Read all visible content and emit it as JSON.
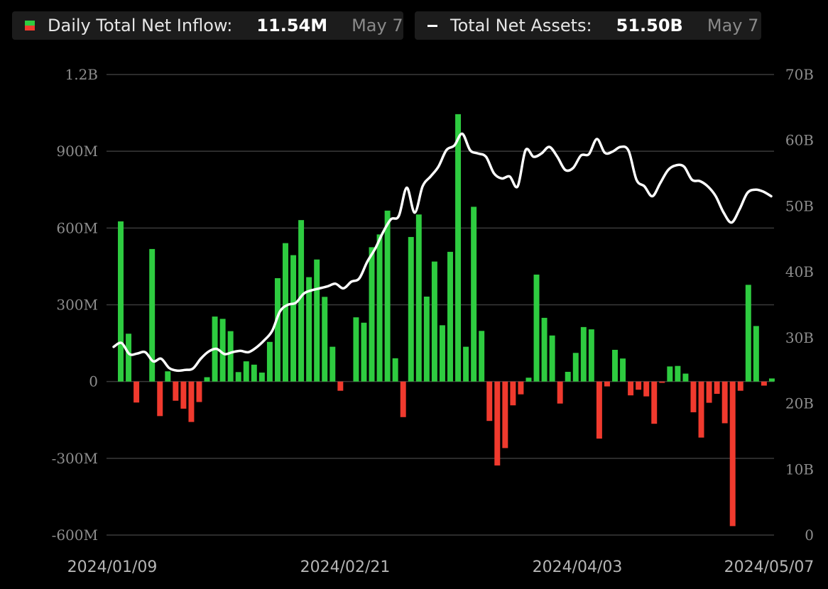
{
  "legend": {
    "inflow": {
      "label": "Daily Total Net Inflow:",
      "value": "11.54M",
      "date": "May 7"
    },
    "assets": {
      "label": "Total Net Assets:",
      "value": "51.50B",
      "date": "May 7"
    }
  },
  "colors": {
    "positive": "#2ecc40",
    "negative": "#f03a2e",
    "line": "#ffffff",
    "grid": "#3a3a3a",
    "background": "#000000"
  },
  "chart_data": {
    "type": "bar",
    "title": "",
    "x_tick_labels": [
      "2024/01/09",
      "2024/02/21",
      "2024/04/03",
      "2024/05/07"
    ],
    "y_left_ticks": [
      "1.2B",
      "900M",
      "600M",
      "300M",
      "0",
      "-300M",
      "-600M"
    ],
    "y_right_ticks": [
      "70B",
      "60B",
      "50B",
      "40B",
      "30B",
      "20B",
      "10B",
      "0"
    ],
    "y_left_range": [
      -600,
      1200
    ],
    "y_right_range": [
      0,
      70
    ],
    "grid": true,
    "series": [
      {
        "name": "Daily Total Net Inflow",
        "type": "bar",
        "unit": "M",
        "values": [
          626,
          187,
          -82,
          0,
          518,
          -135,
          40,
          -75,
          -106,
          -158,
          -80,
          17,
          254,
          245,
          197,
          37,
          79,
          66,
          35,
          155,
          404,
          541,
          494,
          631,
          408,
          477,
          331,
          136,
          -36,
          0,
          251,
          230,
          525,
          575,
          668,
          91,
          -139,
          565,
          653,
          332,
          469,
          220,
          507,
          1045,
          136,
          683,
          198,
          -154,
          -328,
          -260,
          -93,
          -50,
          15,
          418,
          249,
          180,
          -86,
          38,
          112,
          213,
          204,
          -223,
          -19,
          124,
          90,
          -54,
          -32,
          -58,
          -165,
          -5,
          59,
          61,
          31,
          -120,
          -219,
          -83,
          -48,
          -163,
          -565,
          -36,
          378,
          217,
          -16,
          12
        ]
      },
      {
        "name": "Total Net Assets",
        "type": "line",
        "unit": "B",
        "values": [
          28.6,
          29.2,
          27.5,
          27.6,
          27.8,
          26.4,
          26.8,
          25.4,
          25.0,
          25.1,
          25.3,
          26.8,
          27.9,
          28.3,
          27.5,
          27.8,
          28.0,
          27.8,
          28.5,
          29.6,
          31.0,
          34.0,
          35.0,
          35.3,
          36.7,
          37.2,
          37.5,
          37.8,
          38.2,
          37.5,
          38.5,
          39.0,
          41.5,
          43.5,
          46.0,
          48.0,
          48.5,
          52.8,
          49.0,
          53.0,
          54.5,
          56.0,
          58.5,
          59.2,
          61.0,
          58.5,
          58.0,
          57.5,
          55.0,
          54.2,
          54.5,
          53.0,
          58.5,
          57.5,
          58.0,
          59.0,
          57.5,
          55.5,
          55.8,
          57.7,
          57.9,
          60.2,
          58.1,
          58.3,
          59.0,
          58.4,
          54.0,
          53.0,
          51.5,
          53.5,
          55.5,
          56.2,
          56.0,
          54.0,
          53.8,
          53.0,
          51.5,
          49.0,
          47.5,
          49.5,
          52.0,
          52.5,
          52.2,
          51.5
        ]
      }
    ]
  }
}
